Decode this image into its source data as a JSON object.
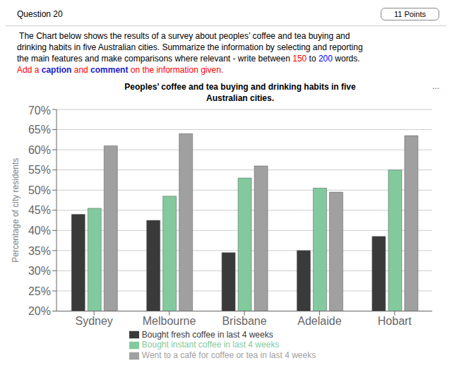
{
  "chart_data": {
    "type": "bar",
    "title": "Peoples’ coffee and tea buying and drinking habits in five\nAustralian cities.",
    "ylabel": "Percentage of city residents",
    "categories": [
      "Sydney",
      "Melbourne",
      "Brisbane",
      "Adelaide",
      "Hobart"
    ],
    "series": [
      {
        "name": "Bought fresh coffee in last 4 weeks",
        "color": "#3a3a3a",
        "values": [
          44,
          42.5,
          34.5,
          35,
          38.5
        ]
      },
      {
        "name": "Bought instant coffee in last 4 weeks",
        "color": "#82ca9d",
        "values": [
          45.5,
          48.5,
          53,
          50.5,
          55
        ]
      },
      {
        "name": "Went to a café for coffee or tea in last 4 weeks",
        "color": "#a0a0a0",
        "values": [
          61,
          64,
          56,
          49.5,
          63.5
        ]
      }
    ],
    "ylim": [
      20,
      70
    ],
    "yticks": [
      {
        "value": 20,
        "label": "20%"
      },
      {
        "value": 25,
        "label": "25%"
      },
      {
        "value": 30,
        "label": "30%"
      },
      {
        "value": 35,
        "label": "35%"
      },
      {
        "value": 40,
        "label": "40%"
      },
      {
        "value": 45,
        "label": "45%"
      },
      {
        "value": 50,
        "label": "50%"
      },
      {
        "value": 55,
        "label": "55%"
      },
      {
        "value": 60,
        "label": "60%"
      },
      {
        "value": 65,
        "label": "65%"
      },
      {
        "value": 70,
        "label": "70%"
      }
    ],
    "grid": true,
    "legend": "bottom",
    "annotations": [
      [
        {
          "text": "Question 20"
        },
        {
          "text": "11 Points"
        }
      ],
      [
        {
          "text": " The Chart below shows the results of a survey about peoples’ coffee and tea buying and"
        }
      ],
      [
        {
          "text": "drinking habits in five Australian cities. Summarize the information by selecting and reporting"
        }
      ],
      [
        {
          "text": "the main features and make comparisons where relevant - write between "
        },
        {
          "text": "150",
          "color": "red"
        },
        {
          "text": " to "
        },
        {
          "text": "200",
          "color": "blue"
        },
        {
          "text": " words."
        }
      ],
      [
        {
          "text": "Add a ",
          "color": "red"
        },
        {
          "text": "caption",
          "color": "#2222cc"
        },
        {
          "text": " and ",
          "color": "red"
        },
        {
          "text": "comment",
          "color": "#2222cc"
        },
        {
          "text": " on the information given.",
          "color": "red"
        }
      ],
      [
        {
          "text": "..."
        }
      ]
    ]
  }
}
